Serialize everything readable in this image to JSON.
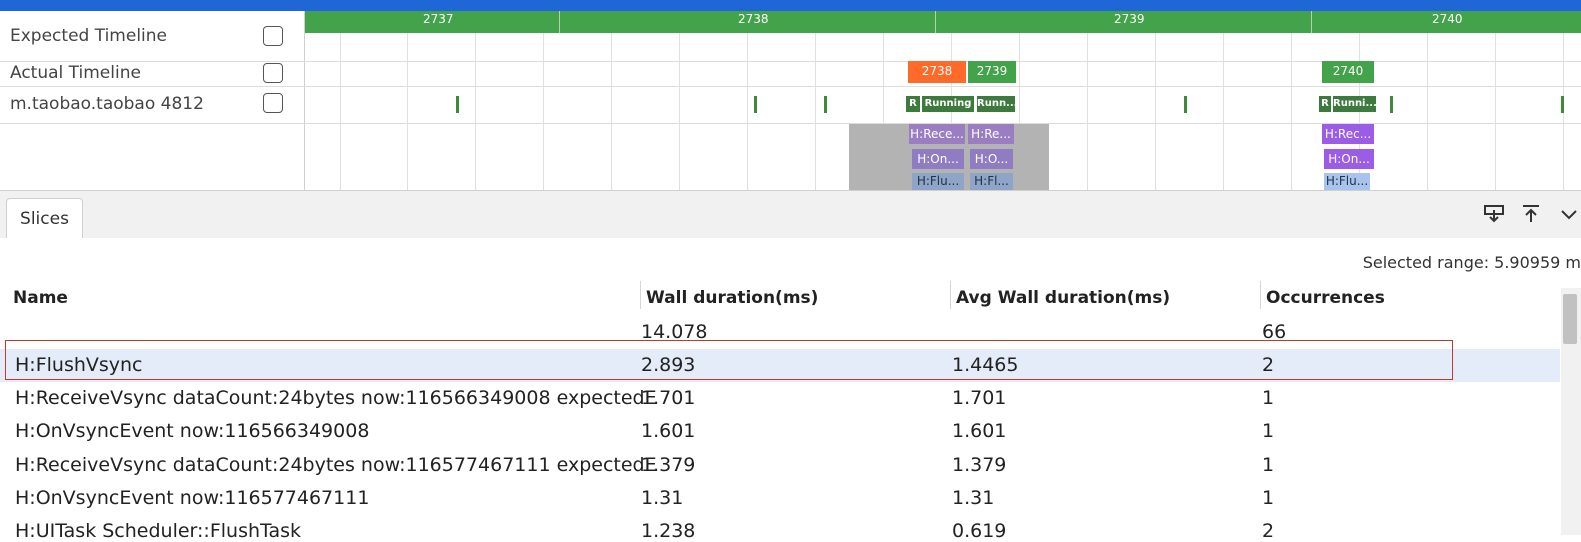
{
  "timeline": {
    "ruler_labels": [
      "2737",
      "2738",
      "2739",
      "2740"
    ],
    "rows": [
      {
        "label": "Expected Timeline"
      },
      {
        "label": "Actual Timeline"
      },
      {
        "label": "m.taobao.taobao 4812"
      }
    ],
    "actual_frames": [
      "2738",
      "2739",
      "2740"
    ],
    "states": [
      "R",
      "Running",
      "Runn...",
      "R",
      "Runni..."
    ],
    "slices_a": [
      "H:Rece...",
      "H:On...",
      "H:Flu..."
    ],
    "slices_b": [
      "H:Re...",
      "H:O...",
      "H:Fl..."
    ],
    "slices_c": [
      "H:Rec...",
      "H:On...",
      "H:Flu..."
    ],
    "colors": {
      "ruler": "#43a34b",
      "frame_janky": "#ff6a2b",
      "frame_ok": "#43a34b",
      "selection_gray": "#b3b3b3",
      "purple_slice": "#9b5de5",
      "light_blue_slice": "#a8c4ec"
    }
  },
  "panel": {
    "tab_label": "Slices",
    "tool_icons": [
      "download-icon",
      "pin-top-icon",
      "chevron-down-icon"
    ],
    "selected_range": "Selected range: 5.90959 m",
    "columns": [
      "Name",
      "Wall duration(ms)",
      "Avg Wall duration(ms)",
      "Occurrences"
    ],
    "summary": {
      "wall": "14.078",
      "occurrences": "66"
    },
    "rows": [
      {
        "name": "H:FlushVsync",
        "wall": "2.893",
        "avg": "1.4465",
        "occ": "2"
      },
      {
        "name": "H:ReceiveVsync dataCount:24bytes now:116566349008 expectedE",
        "wall": "1.701",
        "avg": "1.701",
        "occ": "1"
      },
      {
        "name": "H:OnVsyncEvent now:116566349008",
        "wall": "1.601",
        "avg": "1.601",
        "occ": "1"
      },
      {
        "name": "H:ReceiveVsync dataCount:24bytes now:116577467111 expectedE",
        "wall": "1.379",
        "avg": "1.379",
        "occ": "1"
      },
      {
        "name": "H:OnVsyncEvent now:116577467111",
        "wall": "1.31",
        "avg": "1.31",
        "occ": "1"
      },
      {
        "name": "H:UITask Scheduler::FlushTask",
        "wall": "1.238",
        "avg": "0.619",
        "occ": "2"
      }
    ]
  }
}
